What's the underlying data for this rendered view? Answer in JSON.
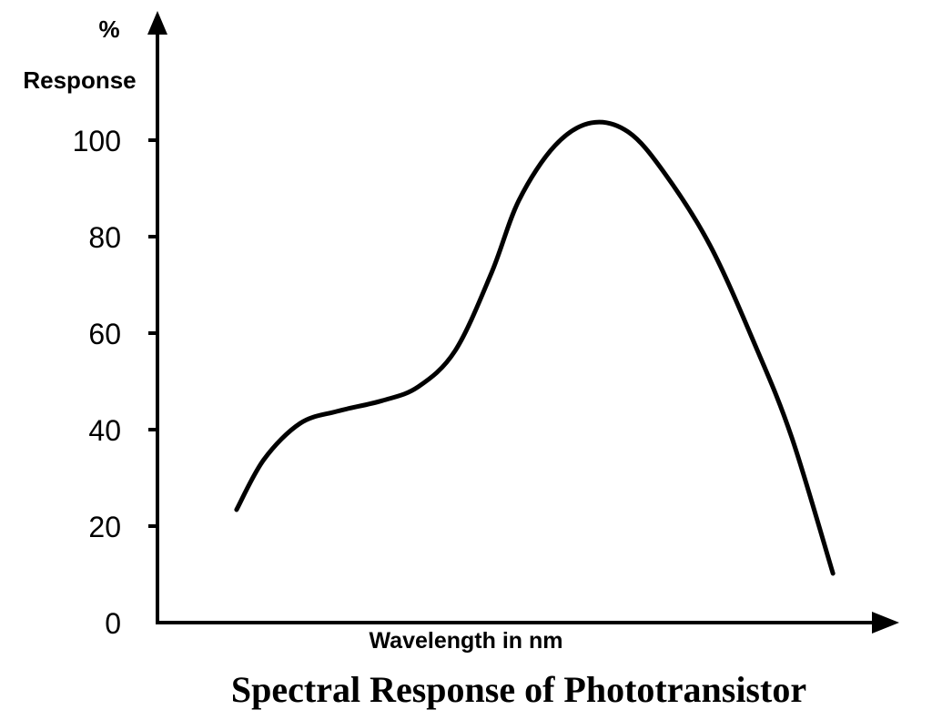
{
  "chart_data": {
    "type": "line",
    "title": "Spectral Response of Phototransistor",
    "xlabel": "Wavelength in nm",
    "ylabel_line1": "%",
    "ylabel_line2": "Response",
    "ylim": [
      0,
      125
    ],
    "yticks": [
      0,
      20,
      40,
      60,
      80,
      100
    ],
    "ytick_labels": [
      "0",
      "20",
      "40",
      "60",
      "80",
      "100"
    ],
    "xlim": [
      0,
      100
    ],
    "x_ticks_shown": false,
    "grid": false,
    "series": [
      {
        "color": "#000000",
        "x": [
          10.7,
          14.4,
          19.3,
          24.3,
          30.4,
          35.3,
          40.3,
          45.2,
          48.9,
          53.8,
          58.7,
          63.7,
          68.6,
          74.8,
          80.9,
          85.8,
          91.4
        ],
        "y": [
          23.4,
          33.8,
          41.3,
          43.8,
          46.0,
          48.9,
          56.4,
          72.5,
          87.5,
          98.9,
          103.6,
          101.7,
          93.2,
          78.1,
          57.4,
          38.5,
          10.2
        ]
      }
    ]
  }
}
